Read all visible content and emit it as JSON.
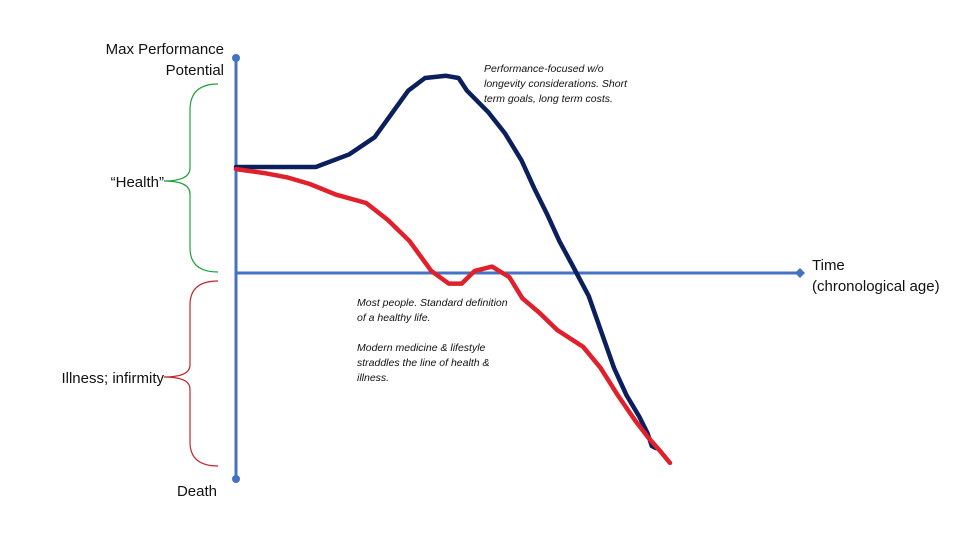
{
  "colors": {
    "axis": "#4472C4",
    "health_brace": "#22A33A",
    "illness_brace": "#C0282D",
    "performance_curve": "#0B1F5C",
    "typical_curve": "#E0202A"
  },
  "y_axis": {
    "top_label_line1": "Max Performance",
    "top_label_line2": "Potential",
    "bottom_label": "Death"
  },
  "x_axis": {
    "label_line1": "Time",
    "label_line2": "(chronological age)"
  },
  "regions": {
    "health_label": "“Health”",
    "illness_label": "Illness; infirmity"
  },
  "annotations": {
    "performance": [
      "Performance-focused w/o",
      "longevity considerations. Short",
      "term goals, long term costs."
    ],
    "typical": [
      "Most people. Standard definition",
      "of a healthy life."
    ],
    "medicine": [
      "Modern medicine & lifestyle",
      "straddles the line of health &",
      "illness."
    ]
  },
  "curves": {
    "performance_focused": {
      "description_ref": "annotations.performance",
      "age": [
        0,
        0.19,
        0.27,
        0.33,
        0.37,
        0.41,
        0.45,
        0.5,
        0.53,
        0.55,
        0.6,
        0.64,
        0.68,
        0.71,
        0.74,
        0.77,
        0.8,
        0.84,
        0.87,
        0.9,
        0.93,
        0.96,
        0.98,
        0.99,
        1.0
      ],
      "level": [
        0.5,
        0.5,
        0.56,
        0.64,
        0.75,
        0.86,
        0.92,
        0.93,
        0.92,
        0.86,
        0.76,
        0.66,
        0.53,
        0.4,
        0.28,
        0.15,
        0.04,
        -0.11,
        -0.28,
        -0.45,
        -0.58,
        -0.68,
        -0.76,
        -0.82,
        -0.83
      ]
    },
    "most_people": {
      "description_ref": "annotations.typical",
      "age": [
        0,
        0.07,
        0.12,
        0.17,
        0.23,
        0.3,
        0.35,
        0.4,
        0.45,
        0.49,
        0.52,
        0.55,
        0.59,
        0.63,
        0.66,
        0.7,
        0.74,
        0.8,
        0.84,
        0.88,
        0.92,
        0.95,
        0.98,
        1.0
      ],
      "level": [
        0.49,
        0.47,
        0.45,
        0.42,
        0.37,
        0.33,
        0.25,
        0.15,
        0.01,
        -0.05,
        -0.05,
        0.01,
        0.03,
        -0.02,
        -0.12,
        -0.19,
        -0.27,
        -0.35,
        -0.45,
        -0.58,
        -0.7,
        -0.78,
        -0.85,
        -0.9
      ]
    }
  }
}
